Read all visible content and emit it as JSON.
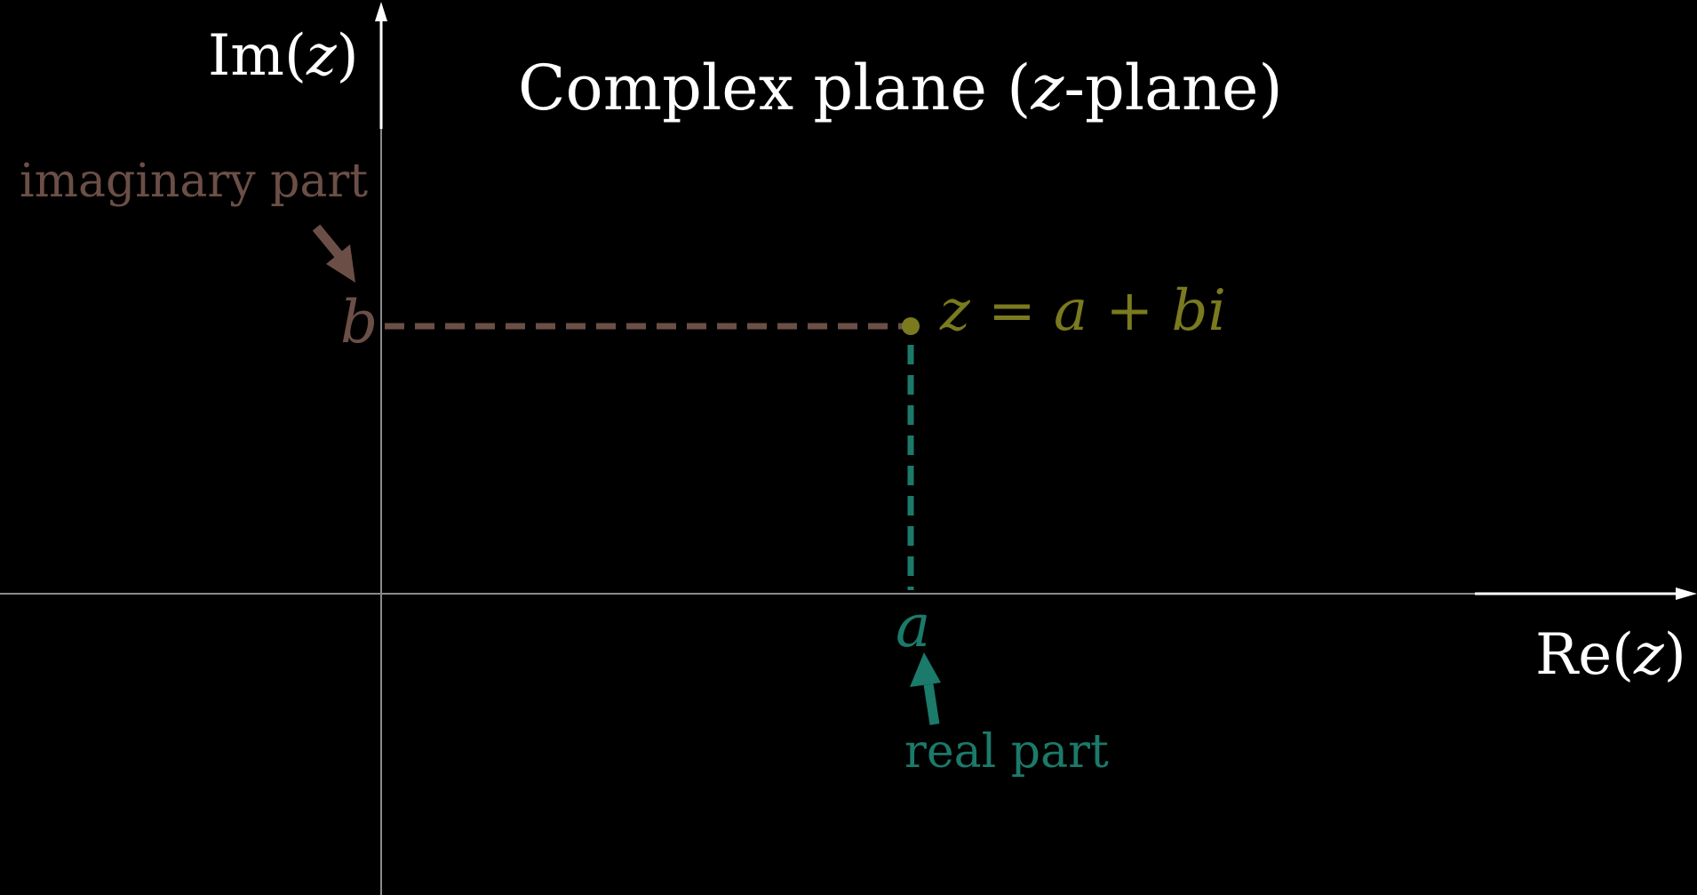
{
  "title": {
    "prefix": "Complex plane (",
    "var": "z",
    "suffix": "-plane)"
  },
  "axes": {
    "im_label": {
      "prefix": "Im(",
      "var": "z",
      "suffix": ")"
    },
    "re_label": {
      "prefix": "Re(",
      "var": "z",
      "suffix": ")"
    },
    "axis_color": "#8a8a8a",
    "arrow_color": "#ffffff"
  },
  "point": {
    "label": "z = a + bi",
    "color": "#7a7a1f"
  },
  "real_part": {
    "symbol": "a",
    "note": "real part",
    "color": "#1b7a6a"
  },
  "imaginary_part": {
    "symbol": "b",
    "note": "imaginary part",
    "color": "#6b4f47"
  }
}
